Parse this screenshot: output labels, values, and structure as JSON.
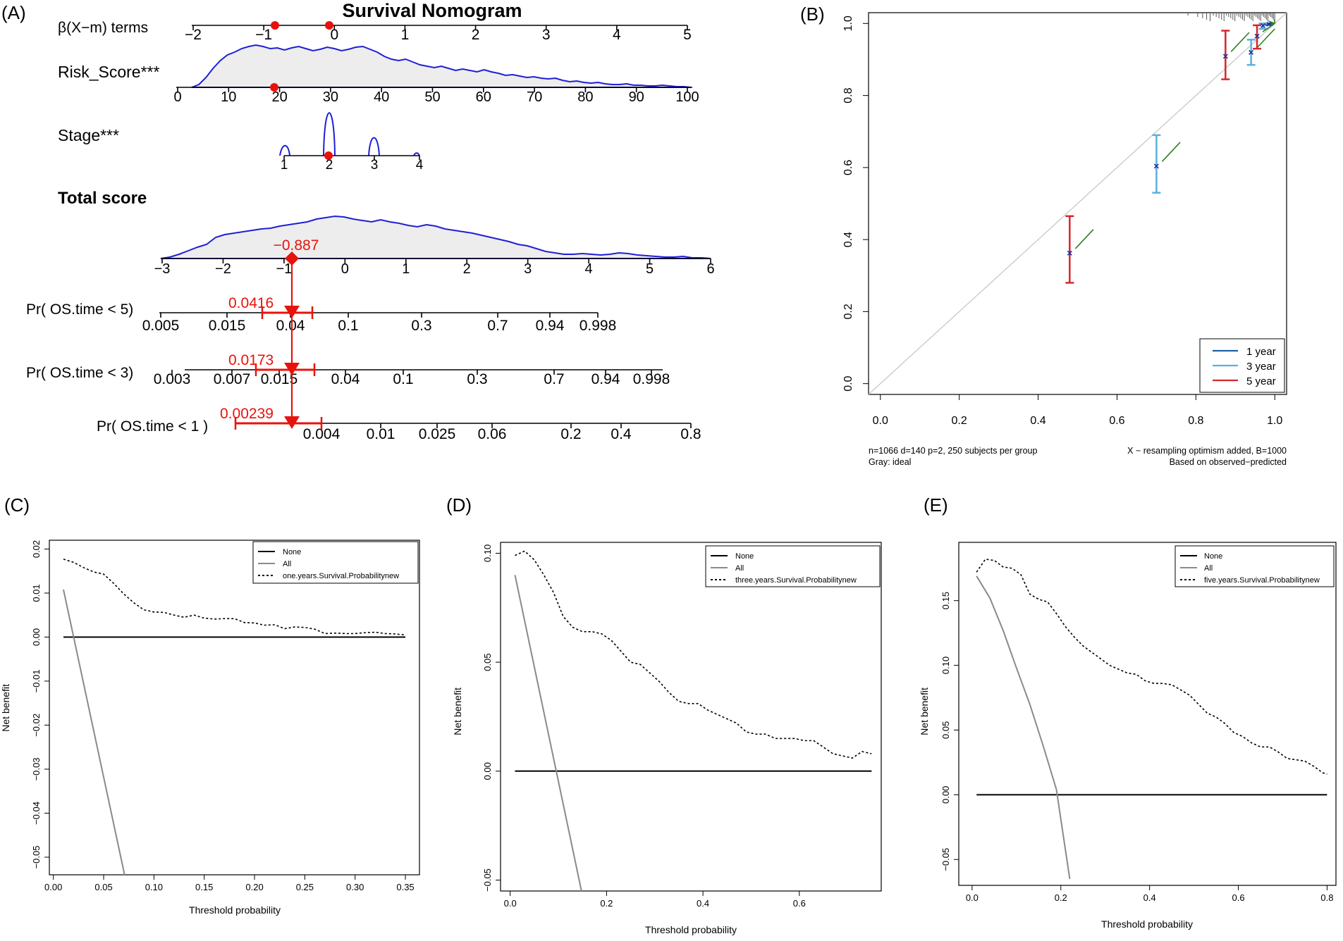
{
  "panel_labels": [
    "(A)",
    "(B)",
    "(C)",
    "(D)",
    "(E)"
  ],
  "colors": {
    "red": "#e8120c",
    "density_line": "#1f1fd6",
    "density_fill": "#ededed",
    "cal_green": "#2e7d1e",
    "year1": "#1f5fa8",
    "year3": "#5ab0e0",
    "year5": "#d6262b",
    "ideal_gray": "#c8c8c8",
    "all_gray": "#8a8a8a",
    "none_black": "#000000"
  },
  "nomogram": {
    "title": "Survival Nomogram",
    "beta_label": "β(X−m) terms",
    "beta_ticks": [
      "−2",
      "−1",
      "0",
      "1",
      "2",
      "3",
      "4",
      "5"
    ],
    "risk_label": "Risk_Score***",
    "risk_ticks": [
      "0",
      "10",
      "20",
      "30",
      "40",
      "50",
      "60",
      "70",
      "80",
      "90",
      "100"
    ],
    "stage_label": "Stage***",
    "stage_ticks": [
      "1",
      "2",
      "3",
      "4"
    ],
    "total_label": "Total score",
    "total_ticks": [
      "−3",
      "−2",
      "−1",
      "0",
      "1",
      "2",
      "3",
      "4",
      "5",
      "6"
    ],
    "total_value": "−0.887",
    "pr5_label": "Pr( OS.time < 5)",
    "pr5_ticks": [
      "0.005",
      "0.015",
      "0.04",
      "0.1",
      "0.3",
      "0.7",
      "0.94",
      "0.998"
    ],
    "pr5_value": "0.0416",
    "pr3_label": "Pr( OS.time < 3)",
    "pr3_ticks": [
      "0.003",
      "0.007",
      "0.015",
      "0.04",
      "0.1",
      "0.3",
      "0.7",
      "0.94",
      "0.998"
    ],
    "pr3_value": "0.0173",
    "pr1_label": "Pr( OS.time < 1 )",
    "pr1_ticks": [
      "0.004",
      "0.01",
      "0.025",
      "0.06",
      "0.2",
      "0.4",
      "0.8"
    ],
    "pr1_value": "0.00239"
  },
  "chart_data": [
    {
      "panel": "B",
      "type": "scatter",
      "title": "",
      "xlabel": "",
      "ylabel": "",
      "xlim": [
        -0.03,
        1.03
      ],
      "ylim": [
        -0.03,
        1.03
      ],
      "x_ticks": [
        "0.0",
        "0.2",
        "0.4",
        "0.6",
        "0.8",
        "1.0"
      ],
      "y_ticks": [
        "0.0",
        "0.2",
        "0.4",
        "0.6",
        "0.8",
        "1.0"
      ],
      "series": [
        {
          "name": "1 year",
          "points": [
            [
              0.985,
              0.999,
              0.996,
              1.0
            ]
          ]
        },
        {
          "name": "3 year",
          "points": [
            [
              0.7,
              0.605,
              0.53,
              0.69
            ],
            [
              0.94,
              0.92,
              0.885,
              0.955
            ],
            [
              0.97,
              0.995,
              0.985,
              1.0
            ]
          ]
        },
        {
          "name": "5 year",
          "points": [
            [
              0.48,
              0.363,
              0.28,
              0.465
            ],
            [
              0.875,
              0.91,
              0.845,
              0.98
            ],
            [
              0.955,
              0.965,
              0.93,
              0.995
            ]
          ]
        }
      ],
      "point_format": "[predicted, observed, lower, upper]",
      "legend_entries": [
        "1 year",
        "3 year",
        "5 year"
      ],
      "legend_position": "bottom-right",
      "footer_left": [
        "n=1066 d=140 p=2, 250 subjects per group",
        "Gray: ideal"
      ],
      "footer_right": [
        "X − resampling optimism added, B=1000",
        "Based on observed−predicted"
      ]
    },
    {
      "panel": "C",
      "type": "line",
      "xlabel": "Threshold probability",
      "ylabel": "Net benefit",
      "xlim": [
        -0.004,
        0.364
      ],
      "ylim": [
        -0.054,
        0.022
      ],
      "x_ticks": [
        "0.00",
        "0.05",
        "0.10",
        "0.15",
        "0.20",
        "0.25",
        "0.30",
        "0.35"
      ],
      "y_ticks": [
        "−0.05",
        "−0.04",
        "−0.03",
        "−0.02",
        "−0.01",
        "0.00",
        "0.01",
        "0.02"
      ],
      "series": [
        {
          "name": "None",
          "x": [
            0.01,
            0.35
          ],
          "y": [
            0.0,
            0.0
          ]
        },
        {
          "name": "All",
          "x": [
            0.01,
            0.0708
          ],
          "y": [
            0.0108,
            -0.054
          ]
        },
        {
          "name": "one.years.Survival.Probabilitynew",
          "x": [
            0.01,
            0.02,
            0.03,
            0.04,
            0.05,
            0.06,
            0.07,
            0.08,
            0.09,
            0.1,
            0.11,
            0.12,
            0.13,
            0.14,
            0.15,
            0.16,
            0.17,
            0.18,
            0.19,
            0.2,
            0.21,
            0.22,
            0.23,
            0.24,
            0.25,
            0.26,
            0.27,
            0.28,
            0.29,
            0.3,
            0.31,
            0.32,
            0.33,
            0.34,
            0.35
          ],
          "y": [
            0.0177,
            0.017,
            0.0158,
            0.0148,
            0.0143,
            0.0122,
            0.0098,
            0.0078,
            0.0062,
            0.0057,
            0.0056,
            0.005,
            0.0045,
            0.005,
            0.0043,
            0.0041,
            0.0042,
            0.0042,
            0.0033,
            0.0032,
            0.0027,
            0.0028,
            0.0019,
            0.0023,
            0.0022,
            0.0018,
            0.0008,
            0.0009,
            0.0008,
            0.0008,
            0.001,
            0.0011,
            0.0008,
            0.0007,
            0.0005
          ]
        }
      ],
      "legend_entries": [
        "None",
        "All",
        "one.years.Survival.Probabilitynew"
      ],
      "legend_position": "top-right"
    },
    {
      "panel": "D",
      "type": "line",
      "xlabel": "Threshold probability",
      "ylabel": "Net benefit",
      "xlim": [
        -0.02,
        0.77
      ],
      "ylim": [
        -0.055,
        0.105
      ],
      "x_ticks": [
        "0.0",
        "0.2",
        "0.4",
        "0.6"
      ],
      "y_ticks": [
        "−0.05",
        "0.00",
        "0.05",
        "0.10"
      ],
      "series": [
        {
          "name": "None",
          "x": [
            0.01,
            0.75
          ],
          "y": [
            0.0,
            0.0
          ]
        },
        {
          "name": "All",
          "x": [
            0.01,
            0.148
          ],
          "y": [
            0.09,
            -0.055
          ]
        },
        {
          "name": "three.years.Survival.Probabilitynew",
          "x": [
            0.01,
            0.03,
            0.05,
            0.07,
            0.09,
            0.11,
            0.13,
            0.15,
            0.17,
            0.19,
            0.21,
            0.23,
            0.25,
            0.27,
            0.29,
            0.31,
            0.33,
            0.35,
            0.37,
            0.39,
            0.41,
            0.43,
            0.45,
            0.47,
            0.49,
            0.51,
            0.53,
            0.55,
            0.57,
            0.59,
            0.61,
            0.63,
            0.65,
            0.67,
            0.69,
            0.71,
            0.73,
            0.75
          ],
          "y": [
            0.099,
            0.101,
            0.097,
            0.09,
            0.082,
            0.071,
            0.066,
            0.064,
            0.064,
            0.063,
            0.06,
            0.055,
            0.05,
            0.049,
            0.045,
            0.041,
            0.036,
            0.032,
            0.031,
            0.031,
            0.028,
            0.026,
            0.024,
            0.022,
            0.018,
            0.017,
            0.017,
            0.015,
            0.015,
            0.015,
            0.014,
            0.014,
            0.011,
            0.008,
            0.007,
            0.006,
            0.009,
            0.008
          ]
        }
      ],
      "legend_entries": [
        "None",
        "All",
        "three.years.Survival.Probabilitynew"
      ],
      "legend_position": "top-right"
    },
    {
      "panel": "E",
      "type": "line",
      "xlabel": "Threshold probability",
      "ylabel": "Net benefit",
      "xlim": [
        -0.03,
        0.82
      ],
      "ylim": [
        -0.07,
        0.195
      ],
      "x_ticks": [
        "0.0",
        "0.2",
        "0.4",
        "0.6",
        "0.8"
      ],
      "y_ticks": [
        "−0.05",
        "0.00",
        "0.05",
        "0.10",
        "0.15"
      ],
      "series": [
        {
          "name": "None",
          "x": [
            0.01,
            0.8
          ],
          "y": [
            0.0,
            0.0
          ]
        },
        {
          "name": "All",
          "x": [
            0.01,
            0.04,
            0.07,
            0.1,
            0.13,
            0.16,
            0.19,
            0.22
          ],
          "y": [
            0.169,
            0.152,
            0.127,
            0.098,
            0.07,
            0.038,
            0.004,
            -0.065
          ]
        },
        {
          "name": "five.years.Survival.Probabilitynew",
          "x": [
            0.01,
            0.03,
            0.05,
            0.07,
            0.09,
            0.11,
            0.13,
            0.15,
            0.17,
            0.19,
            0.21,
            0.23,
            0.25,
            0.27,
            0.29,
            0.31,
            0.33,
            0.35,
            0.37,
            0.39,
            0.41,
            0.43,
            0.45,
            0.47,
            0.49,
            0.51,
            0.53,
            0.55,
            0.57,
            0.59,
            0.61,
            0.63,
            0.65,
            0.67,
            0.69,
            0.71,
            0.73,
            0.75,
            0.77,
            0.79,
            0.8
          ],
          "y": [
            0.172,
            0.182,
            0.181,
            0.176,
            0.175,
            0.17,
            0.155,
            0.151,
            0.149,
            0.14,
            0.13,
            0.122,
            0.115,
            0.11,
            0.105,
            0.1,
            0.097,
            0.094,
            0.093,
            0.088,
            0.086,
            0.086,
            0.085,
            0.081,
            0.077,
            0.07,
            0.063,
            0.06,
            0.055,
            0.048,
            0.045,
            0.04,
            0.037,
            0.037,
            0.033,
            0.028,
            0.027,
            0.026,
            0.022,
            0.017,
            0.016
          ]
        }
      ],
      "legend_entries": [
        "None",
        "All",
        "five.years.Survival.Probabilitynew"
      ],
      "legend_position": "top-right"
    }
  ]
}
